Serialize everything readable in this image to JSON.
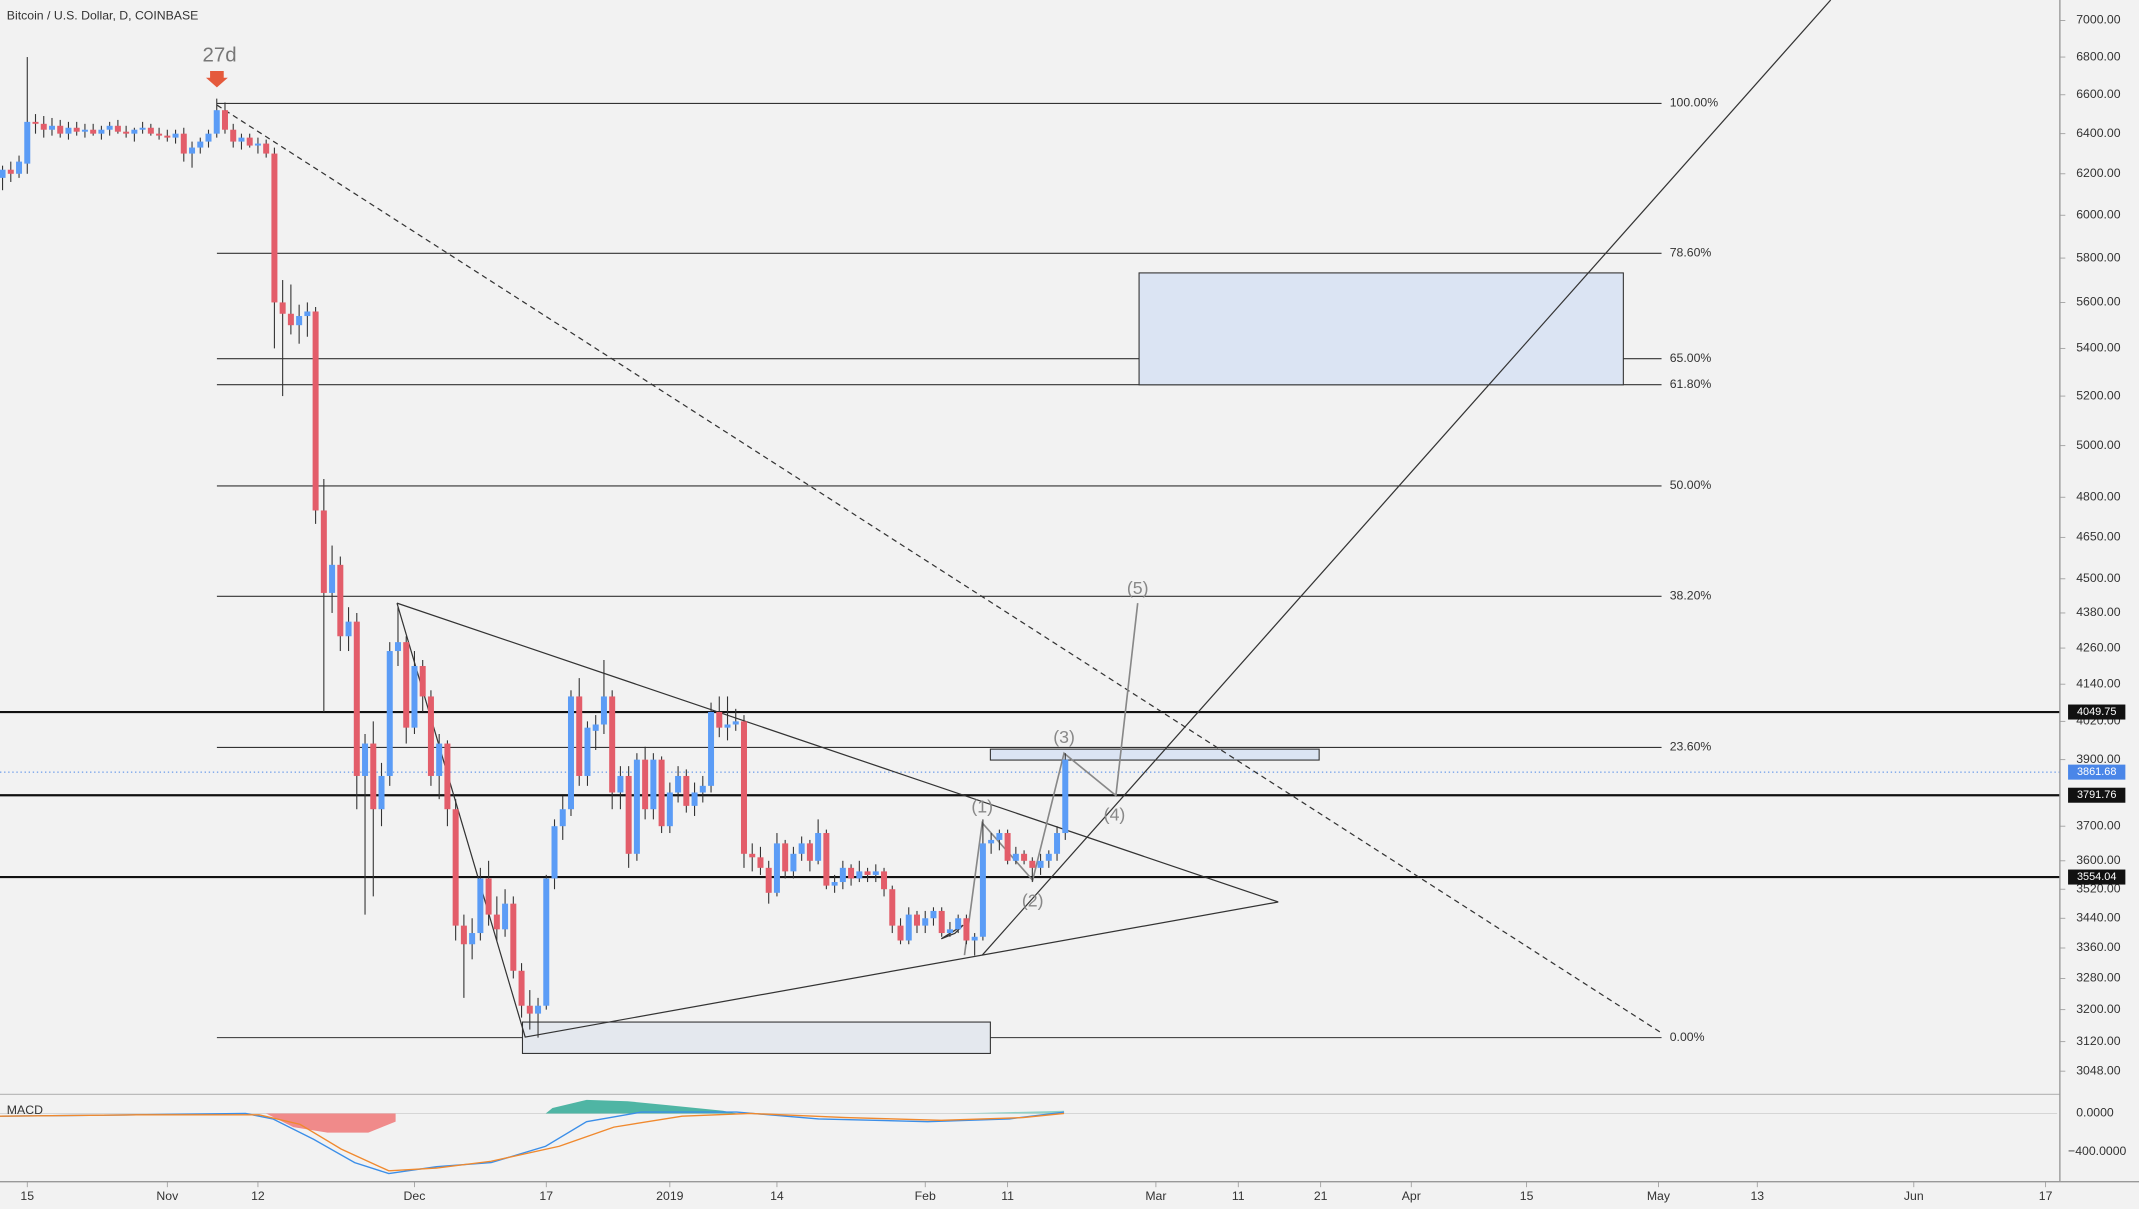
{
  "header": {
    "title": "Bitcoin / U.S. Dollar, D, COINBASE",
    "countdown": "27d"
  },
  "chart_data": {
    "type": "candlestick",
    "log_scale": true,
    "up_color": "#5b9cf6",
    "down_color": "#e35d6a",
    "ylim": [
      2999,
      7114
    ],
    "xlim": [
      -3.31,
      246.4
    ],
    "yticks": [
      {
        "value": 7000,
        "label": "7000.00"
      },
      {
        "value": 6800,
        "label": "6800.00"
      },
      {
        "value": 6600,
        "label": "6600.00"
      },
      {
        "value": 6400,
        "label": "6400.00"
      },
      {
        "value": 6200,
        "label": "6200.00"
      },
      {
        "value": 6000,
        "label": "6000.00"
      },
      {
        "value": 5800,
        "label": "5800.00"
      },
      {
        "value": 5600,
        "label": "5600.00"
      },
      {
        "value": 5400,
        "label": "5400.00"
      },
      {
        "value": 5200,
        "label": "5200.00"
      },
      {
        "value": 5000,
        "label": "5000.00"
      },
      {
        "value": 4800,
        "label": "4800.00"
      },
      {
        "value": 4650,
        "label": "4650.00"
      },
      {
        "value": 4500,
        "label": "4500.00"
      },
      {
        "value": 4380,
        "label": "4380.00"
      },
      {
        "value": 4260,
        "label": "4260.00"
      },
      {
        "value": 4140,
        "label": "4140.00"
      },
      {
        "value": 4020,
        "label": "4020.00"
      },
      {
        "value": 3900,
        "label": "3900.00"
      },
      {
        "value": 3700,
        "label": "3700.00"
      },
      {
        "value": 3600,
        "label": "3600.00"
      },
      {
        "value": 3520,
        "label": "3520.00"
      },
      {
        "value": 3440,
        "label": "3440.00"
      },
      {
        "value": 3360,
        "label": "3360.00"
      },
      {
        "value": 3280,
        "label": "3280.00"
      },
      {
        "value": 3200,
        "label": "3200.00"
      },
      {
        "value": 3120,
        "label": "3120.00"
      },
      {
        "value": 3048,
        "label": "3048.00"
      }
    ],
    "xticks": [
      {
        "value": 0,
        "label": "15"
      },
      {
        "value": 17,
        "label": "Nov"
      },
      {
        "value": 28,
        "label": "12"
      },
      {
        "value": 47,
        "label": "Dec"
      },
      {
        "value": 63,
        "label": "17"
      },
      {
        "value": 78,
        "label": "2019"
      },
      {
        "value": 91,
        "label": "14"
      },
      {
        "value": 109,
        "label": "Feb"
      },
      {
        "value": 119,
        "label": "11"
      },
      {
        "value": 137,
        "label": "Mar"
      },
      {
        "value": 147,
        "label": "11"
      },
      {
        "value": 157,
        "label": "21"
      },
      {
        "value": 168,
        "label": "Apr"
      },
      {
        "value": 182,
        "label": "15"
      },
      {
        "value": 198,
        "label": "May"
      },
      {
        "value": 210,
        "label": "13"
      },
      {
        "value": 229,
        "label": "Jun"
      },
      {
        "value": 245,
        "label": "17"
      }
    ],
    "fib_levels": [
      {
        "label": "100.00%",
        "price": 6555
      },
      {
        "label": "78.60%",
        "price": 5822
      },
      {
        "label": "65.00%",
        "price": 5356
      },
      {
        "label": "61.80%",
        "price": 5247
      },
      {
        "label": "50.00%",
        "price": 4843
      },
      {
        "label": "38.20%",
        "price": 4438
      },
      {
        "label": "23.60%",
        "price": 3938
      },
      {
        "label": "0.00%",
        "price": 3130
      }
    ],
    "levels": [
      {
        "value": 4049.75,
        "label": "4049.75"
      },
      {
        "value": 3791.76,
        "label": "3791.76"
      },
      {
        "value": 3554.04,
        "label": "3554.04"
      }
    ],
    "last_price": {
      "value": 3861.68,
      "label": "3861.68"
    },
    "waves": [
      "(1)",
      "(2)",
      "(3)",
      "(4)",
      "(5)"
    ],
    "candles": [
      [
        -3,
        6180,
        6240,
        6120,
        6220
      ],
      [
        -2,
        6220,
        6260,
        6160,
        6200
      ],
      [
        -1,
        6200,
        6290,
        6180,
        6260
      ],
      [
        0,
        6250,
        6800,
        6200,
        6460
      ],
      [
        1,
        6460,
        6500,
        6400,
        6450
      ],
      [
        2,
        6450,
        6490,
        6380,
        6420
      ],
      [
        3,
        6420,
        6480,
        6390,
        6440
      ],
      [
        4,
        6440,
        6470,
        6380,
        6400
      ],
      [
        5,
        6400,
        6460,
        6370,
        6430
      ],
      [
        6,
        6430,
        6460,
        6390,
        6410
      ],
      [
        7,
        6410,
        6450,
        6380,
        6420
      ],
      [
        8,
        6420,
        6450,
        6390,
        6400
      ],
      [
        9,
        6400,
        6440,
        6370,
        6420
      ],
      [
        10,
        6420,
        6460,
        6390,
        6440
      ],
      [
        11,
        6440,
        6470,
        6400,
        6410
      ],
      [
        12,
        6410,
        6440,
        6380,
        6400
      ],
      [
        13,
        6400,
        6430,
        6360,
        6420
      ],
      [
        14,
        6420,
        6460,
        6400,
        6430
      ],
      [
        15,
        6430,
        6450,
        6390,
        6400
      ],
      [
        16,
        6400,
        6430,
        6370,
        6390
      ],
      [
        17,
        6390,
        6420,
        6360,
        6380
      ],
      [
        18,
        6380,
        6420,
        6350,
        6400
      ],
      [
        19,
        6400,
        6430,
        6260,
        6300
      ],
      [
        20,
        6300,
        6360,
        6230,
        6330
      ],
      [
        21,
        6330,
        6380,
        6300,
        6360
      ],
      [
        22,
        6360,
        6420,
        6330,
        6400
      ],
      [
        23,
        6400,
        6580,
        6380,
        6520
      ],
      [
        24,
        6520,
        6560,
        6400,
        6420
      ],
      [
        25,
        6420,
        6450,
        6330,
        6360
      ],
      [
        26,
        6360,
        6400,
        6320,
        6380
      ],
      [
        27,
        6380,
        6400,
        6330,
        6340
      ],
      [
        28,
        6340,
        6380,
        6300,
        6350
      ],
      [
        29,
        6350,
        6370,
        6280,
        6300
      ],
      [
        30,
        6300,
        6330,
        5400,
        5600
      ],
      [
        31,
        5600,
        5700,
        5200,
        5550
      ],
      [
        32,
        5550,
        5680,
        5460,
        5500
      ],
      [
        33,
        5500,
        5590,
        5420,
        5540
      ],
      [
        34,
        5540,
        5600,
        5450,
        5560
      ],
      [
        35,
        5560,
        5580,
        4700,
        4750
      ],
      [
        36,
        4750,
        4870,
        4050,
        4450
      ],
      [
        37,
        4450,
        4620,
        4380,
        4550
      ],
      [
        38,
        4550,
        4580,
        4250,
        4300
      ],
      [
        39,
        4300,
        4400,
        4250,
        4350
      ],
      [
        40,
        4350,
        4380,
        3750,
        3850
      ],
      [
        41,
        3850,
        3980,
        3450,
        3950
      ],
      [
        42,
        3950,
        4020,
        3500,
        3750
      ],
      [
        43,
        3750,
        3890,
        3700,
        3850
      ],
      [
        44,
        3850,
        4280,
        3820,
        4250
      ],
      [
        45,
        4250,
        4400,
        4200,
        4280
      ],
      [
        46,
        4280,
        4300,
        3950,
        4000
      ],
      [
        47,
        4000,
        4250,
        3980,
        4200
      ],
      [
        48,
        4200,
        4220,
        4050,
        4100
      ],
      [
        49,
        4100,
        4120,
        3820,
        3850
      ],
      [
        50,
        3850,
        3980,
        3780,
        3950
      ],
      [
        51,
        3950,
        3960,
        3700,
        3750
      ],
      [
        52,
        3750,
        3780,
        3380,
        3420
      ],
      [
        53,
        3420,
        3450,
        3230,
        3370
      ],
      [
        54,
        3370,
        3440,
        3330,
        3400
      ],
      [
        55,
        3400,
        3580,
        3380,
        3550
      ],
      [
        56,
        3550,
        3600,
        3420,
        3450
      ],
      [
        57,
        3450,
        3500,
        3380,
        3410
      ],
      [
        58,
        3410,
        3520,
        3390,
        3480
      ],
      [
        59,
        3480,
        3500,
        3280,
        3300
      ],
      [
        60,
        3300,
        3320,
        3180,
        3210
      ],
      [
        61,
        3210,
        3250,
        3150,
        3190
      ],
      [
        62,
        3190,
        3230,
        3130,
        3210
      ],
      [
        63,
        3210,
        3560,
        3200,
        3550
      ],
      [
        64,
        3550,
        3720,
        3520,
        3700
      ],
      [
        65,
        3700,
        3790,
        3660,
        3750
      ],
      [
        66,
        3750,
        4120,
        3730,
        4100
      ],
      [
        67,
        4100,
        4160,
        3820,
        3850
      ],
      [
        68,
        3850,
        4020,
        3820,
        4000
      ],
      [
        69,
        3990,
        4040,
        3930,
        4010
      ],
      [
        70,
        4010,
        4220,
        3980,
        4100
      ],
      [
        71,
        4100,
        4120,
        3750,
        3800
      ],
      [
        72,
        3800,
        3880,
        3750,
        3850
      ],
      [
        73,
        3850,
        3880,
        3580,
        3620
      ],
      [
        74,
        3620,
        3920,
        3600,
        3900
      ],
      [
        75,
        3900,
        3940,
        3720,
        3750
      ],
      [
        76,
        3750,
        3920,
        3720,
        3900
      ],
      [
        77,
        3900,
        3910,
        3680,
        3700
      ],
      [
        78,
        3700,
        3830,
        3680,
        3800
      ],
      [
        79,
        3800,
        3880,
        3770,
        3850
      ],
      [
        80,
        3850,
        3870,
        3740,
        3760
      ],
      [
        81,
        3760,
        3830,
        3730,
        3800
      ],
      [
        82,
        3800,
        3850,
        3770,
        3820
      ],
      [
        83,
        3820,
        4080,
        3800,
        4050
      ],
      [
        84,
        4050,
        4100,
        3970,
        4000
      ],
      [
        85,
        4000,
        4100,
        3960,
        4010
      ],
      [
        86,
        4010,
        4060,
        3990,
        4020
      ],
      [
        87,
        4020,
        4040,
        3580,
        3620
      ],
      [
        88,
        3620,
        3650,
        3570,
        3610
      ],
      [
        89,
        3610,
        3640,
        3560,
        3580
      ],
      [
        90,
        3580,
        3600,
        3480,
        3510
      ],
      [
        91,
        3510,
        3680,
        3500,
        3650
      ],
      [
        92,
        3650,
        3660,
        3550,
        3570
      ],
      [
        93,
        3570,
        3640,
        3550,
        3620
      ],
      [
        94,
        3620,
        3670,
        3600,
        3650
      ],
      [
        95,
        3650,
        3660,
        3570,
        3600
      ],
      [
        96,
        3600,
        3720,
        3590,
        3680
      ],
      [
        97,
        3680,
        3690,
        3520,
        3530
      ],
      [
        98,
        3530,
        3560,
        3510,
        3540
      ],
      [
        99,
        3540,
        3600,
        3520,
        3580
      ],
      [
        100,
        3580,
        3590,
        3530,
        3550
      ],
      [
        101,
        3550,
        3600,
        3540,
        3570
      ],
      [
        102,
        3570,
        3580,
        3540,
        3560
      ],
      [
        103,
        3560,
        3590,
        3540,
        3570
      ],
      [
        104,
        3570,
        3580,
        3500,
        3520
      ],
      [
        105,
        3520,
        3530,
        3400,
        3420
      ],
      [
        106,
        3420,
        3440,
        3370,
        3380
      ],
      [
        107,
        3380,
        3470,
        3370,
        3450
      ],
      [
        108,
        3450,
        3460,
        3400,
        3420
      ],
      [
        109,
        3420,
        3460,
        3400,
        3440
      ],
      [
        110,
        3440,
        3470,
        3420,
        3460
      ],
      [
        111,
        3460,
        3470,
        3390,
        3400
      ],
      [
        112,
        3400,
        3430,
        3390,
        3410
      ],
      [
        113,
        3410,
        3450,
        3400,
        3440
      ],
      [
        114,
        3440,
        3450,
        3370,
        3380
      ],
      [
        115,
        3380,
        3400,
        3340,
        3390
      ],
      [
        116,
        3390,
        3720,
        3380,
        3650
      ],
      [
        117,
        3650,
        3680,
        3620,
        3660
      ],
      [
        118,
        3660,
        3690,
        3630,
        3680
      ],
      [
        119,
        3680,
        3690,
        3590,
        3600
      ],
      [
        120,
        3600,
        3640,
        3590,
        3620
      ],
      [
        121,
        3620,
        3630,
        3590,
        3600
      ],
      [
        122,
        3600,
        3610,
        3540,
        3580
      ],
      [
        123,
        3580,
        3620,
        3560,
        3600
      ],
      [
        124,
        3600,
        3630,
        3580,
        3620
      ],
      [
        125,
        3620,
        3700,
        3600,
        3680
      ],
      [
        126,
        3680,
        3920,
        3660,
        3900
      ]
    ]
  },
  "macd": {
    "label": "MACD",
    "yticks": [
      {
        "value": 0,
        "label": "0.0000"
      },
      {
        "value": -400,
        "label": "−400.0000"
      }
    ]
  }
}
